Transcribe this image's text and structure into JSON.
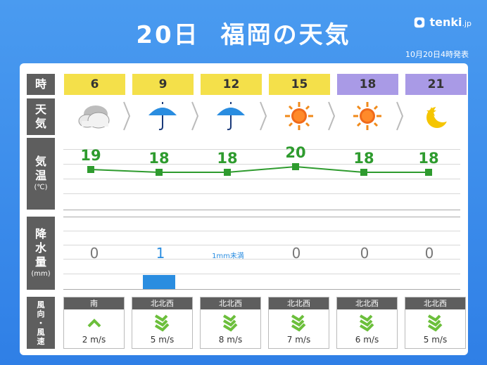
{
  "header": {
    "title_day": "20日",
    "title_place": "福岡の天気",
    "logo_text": "tenki",
    "logo_suffix": ".jp",
    "issued": "10月20日4時発表"
  },
  "labels": {
    "hour": "時",
    "weather": [
      "天",
      "気"
    ],
    "temp": [
      "気",
      "温"
    ],
    "temp_unit": "(℃)",
    "precip": [
      "降",
      "水",
      "量"
    ],
    "precip_unit": "(mm)",
    "wind": [
      "風",
      "向",
      "・",
      "風",
      "速"
    ]
  },
  "columns": [
    {
      "hour": "6",
      "period": "day",
      "weather_icon": "cloudy-icon",
      "temp": "19",
      "precip": "0",
      "wind_dir": "南",
      "wind_speed": "2 m/s"
    },
    {
      "hour": "9",
      "period": "day",
      "weather_icon": "umbrella-icon",
      "temp": "18",
      "precip": "1",
      "wind_dir": "北北西",
      "wind_speed": "5 m/s"
    },
    {
      "hour": "12",
      "period": "day",
      "weather_icon": "umbrella-icon",
      "temp": "18",
      "precip": "1mm未満",
      "wind_dir": "北北西",
      "wind_speed": "8 m/s"
    },
    {
      "hour": "15",
      "period": "day",
      "weather_icon": "sun-icon",
      "temp": "20",
      "precip": "0",
      "wind_dir": "北北西",
      "wind_speed": "7 m/s"
    },
    {
      "hour": "18",
      "period": "night",
      "weather_icon": "sun-icon",
      "temp": "18",
      "precip": "0",
      "wind_dir": "北北西",
      "wind_speed": "6 m/s"
    },
    {
      "hour": "21",
      "period": "night",
      "weather_icon": "moon-icon",
      "temp": "18",
      "precip": "0",
      "wind_dir": "北北西",
      "wind_speed": "5 m/s"
    }
  ],
  "colors": {
    "day_header": "#f4e04a",
    "night_header": "#a99ae6",
    "temp_line": "#2e9b2e",
    "precip_bar": "#2a8de0",
    "wind_arrow": "#6cbf3c"
  },
  "chart_data": {
    "type": "line",
    "x": [
      "6",
      "9",
      "12",
      "15",
      "18",
      "21"
    ],
    "series": [
      {
        "values": [
          19,
          18,
          18,
          20,
          18,
          18
        ]
      }
    ],
    "precip_values": [
      0,
      1,
      0.5,
      0,
      0,
      0
    ]
  }
}
